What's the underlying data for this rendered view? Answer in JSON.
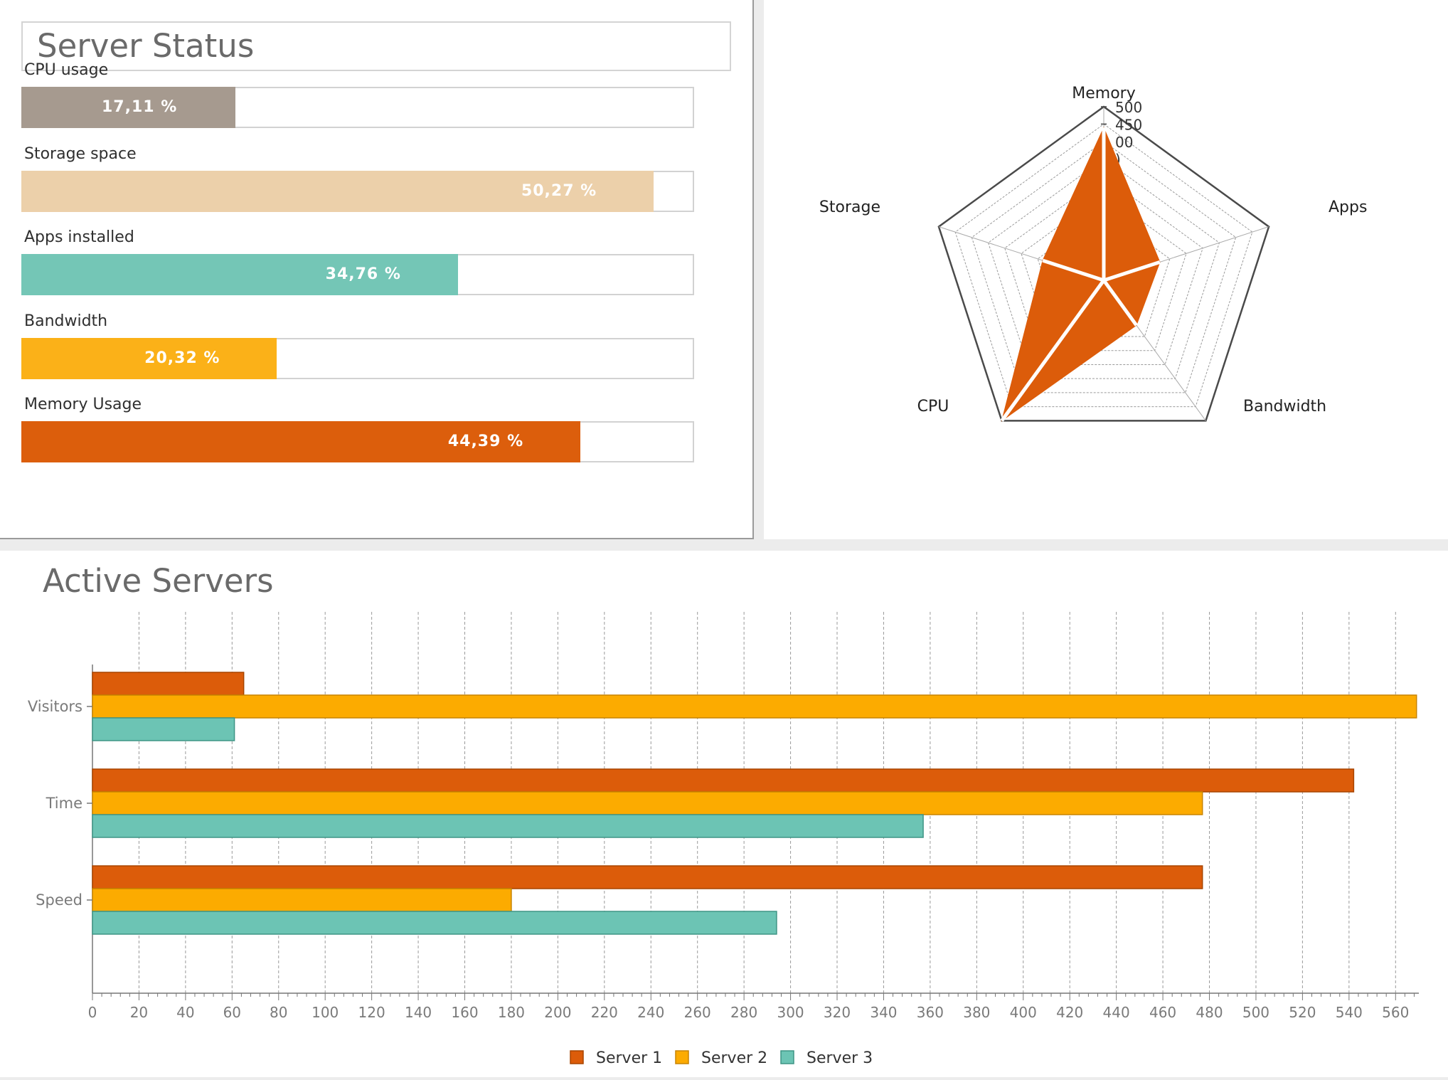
{
  "server_status": {
    "title": "Server Status",
    "metrics": [
      {
        "label": "CPU usage",
        "value_text": "17,11 %",
        "percent": 31.85,
        "color": "#a69a8f",
        "text_color": "#ffffff"
      },
      {
        "label": "Storage space",
        "value_text": "50,27 %",
        "percent": 94.0,
        "color": "#ecd0aa",
        "text_color": "#ffffff"
      },
      {
        "label": "Apps installed",
        "value_text": "34,76 %",
        "percent": 64.9,
        "color": "#74c6b6",
        "text_color": "#ffffff"
      },
      {
        "label": "Bandwidth",
        "value_text": "20,32 %",
        "percent": 38.0,
        "color": "#fbb118",
        "text_color": "#ffffff"
      },
      {
        "label": "Memory Usage",
        "value_text": "44,39 %",
        "percent": 83.1,
        "color": "#dc5e0c",
        "text_color": "#ffffff"
      }
    ]
  },
  "radar": {
    "axes": [
      "Memory",
      "Apps",
      "Bandwidth",
      "CPU",
      "Storage"
    ],
    "tick_labels": [
      "500",
      "450",
      "00",
      ")"
    ],
    "fill_color": "#dc5c0a"
  },
  "active_servers": {
    "title": "Active Servers",
    "legend": [
      {
        "name": "Server 1",
        "color": "#dc5c0a"
      },
      {
        "name": "Server 2",
        "color": "#fcab00"
      },
      {
        "name": "Server 3",
        "color": "#6cc4b4"
      }
    ]
  },
  "chart_data": [
    {
      "type": "radar",
      "axes": [
        "Memory",
        "Apps",
        "Bandwidth",
        "CPU",
        "Storage"
      ],
      "values": [
        440,
        170,
        160,
        500,
        185
      ],
      "rmax": 500,
      "grid": true
    },
    {
      "type": "bar",
      "orientation": "horizontal",
      "title": "Active Servers",
      "categories": [
        "Visitors",
        "Time",
        "Speed"
      ],
      "series": [
        {
          "name": "Server 1",
          "values": [
            65,
            542,
            477
          ]
        },
        {
          "name": "Server 2",
          "values": [
            569,
            477,
            180
          ]
        },
        {
          "name": "Server 3",
          "values": [
            61,
            357,
            294
          ]
        }
      ],
      "xlim": [
        0,
        570
      ],
      "xticks": [
        0,
        20,
        40,
        60,
        80,
        100,
        120,
        140,
        160,
        180,
        200,
        220,
        240,
        260,
        280,
        300,
        320,
        340,
        360,
        380,
        400,
        420,
        440,
        460,
        480,
        500,
        520,
        540,
        560
      ],
      "grid": true,
      "legend": "bottom"
    }
  ]
}
